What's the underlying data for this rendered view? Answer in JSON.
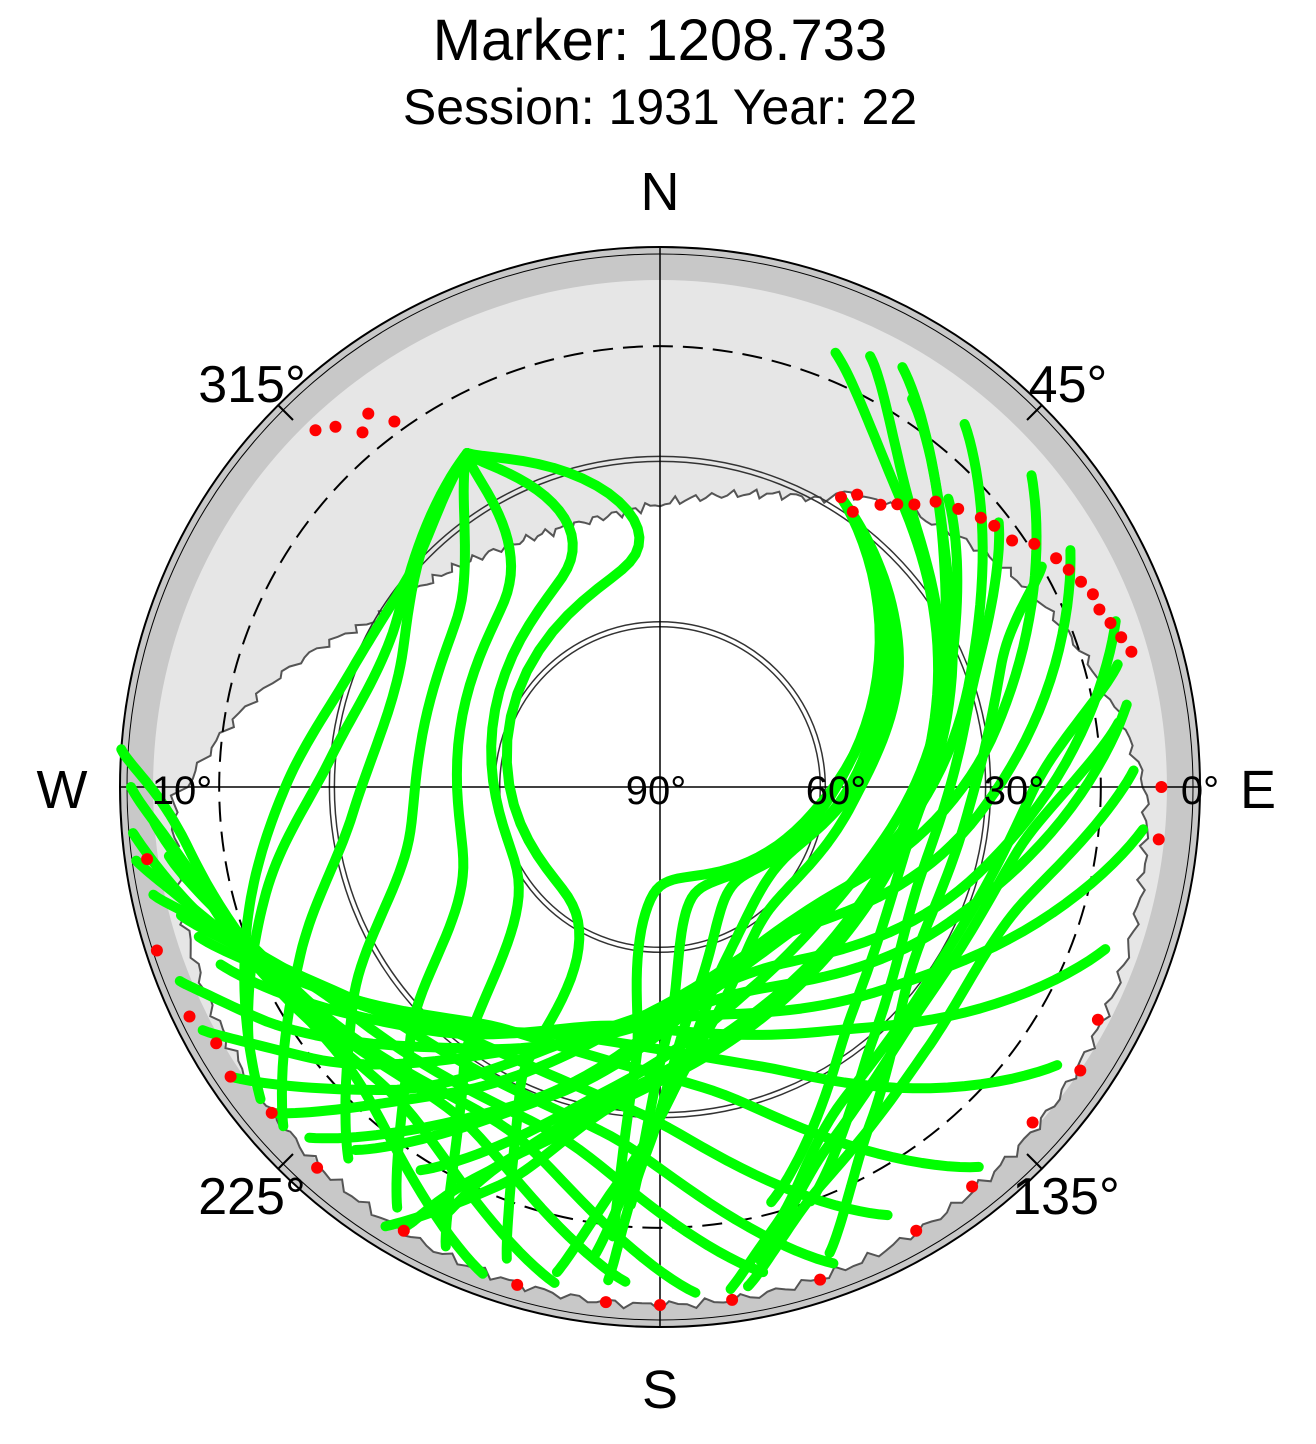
{
  "chart_data": {
    "type": "scatter",
    "projection": "polar-skyplot",
    "title": "Marker: 1208.733",
    "subtitle": "Session: 1931 Year: 22",
    "directions": {
      "north": "N",
      "south": "S",
      "west": "W",
      "east": "E"
    },
    "azimuth_labels": [
      {
        "text": "45°",
        "az": 45
      },
      {
        "text": "135°",
        "az": 135
      },
      {
        "text": "225°",
        "az": 225
      },
      {
        "text": "315°",
        "az": 315
      }
    ],
    "elevation_labels": [
      {
        "text": "90°",
        "el": 90
      },
      {
        "text": "60°",
        "el": 60
      },
      {
        "text": "30°",
        "el": 30
      },
      {
        "text": "0°",
        "el": 0
      },
      {
        "text": "10°",
        "el": 10
      }
    ],
    "elevation_range": [
      -8,
      90
    ],
    "elevation_cutoff_deg": 10,
    "elevation_circles_deg": [
      30,
      60
    ],
    "colors": {
      "valid": "#00ff00",
      "flagged": "#ff0000",
      "outer_ring": "#c8c8c8",
      "horizon_mask": "#e6e6e6"
    },
    "series": [
      {
        "name": "",
        "color": "#00ff00",
        "marker": "circle",
        "note_tracks_az_el": [
          [
            [
              22,
              5
            ],
            [
              40,
              22
            ],
            [
              80,
              40
            ],
            [
              120,
              48
            ],
            [
              160,
              45
            ],
            [
              190,
              32
            ],
            [
              205,
              12
            ],
            [
              210,
              -2
            ]
          ],
          [
            [
              26,
              3
            ],
            [
              45,
              24
            ],
            [
              90,
              42
            ],
            [
              135,
              48
            ],
            [
              175,
              40
            ],
            [
              200,
              20
            ],
            [
              207,
              2
            ]
          ],
          [
            [
              30,
              2
            ],
            [
              55,
              26
            ],
            [
              100,
              44
            ],
            [
              145,
              46
            ],
            [
              185,
              34
            ],
            [
              202,
              12
            ],
            [
              212,
              -4
            ]
          ],
          [
            [
              33,
              6
            ],
            [
              60,
              30
            ],
            [
              110,
              50
            ],
            [
              155,
              50
            ],
            [
              190,
              34
            ],
            [
              212,
              8
            ]
          ],
          [
            [
              40,
              4
            ],
            [
              70,
              30
            ],
            [
              120,
              52
            ],
            [
              165,
              52
            ],
            [
              200,
              30
            ],
            [
              220,
              4
            ]
          ],
          [
            [
              50,
              2
            ],
            [
              80,
              28
            ],
            [
              125,
              54
            ],
            [
              170,
              52
            ],
            [
              205,
              26
            ],
            [
              225,
              0
            ]
          ],
          [
            [
              60,
              4
            ],
            [
              95,
              32
            ],
            [
              140,
              55
            ],
            [
              185,
              48
            ],
            [
              215,
              22
            ],
            [
              230,
              -2
            ]
          ],
          [
            [
              70,
              2
            ],
            [
              105,
              30
            ],
            [
              150,
              52
            ],
            [
              195,
              44
            ],
            [
              222,
              16
            ],
            [
              236,
              -4
            ]
          ],
          [
            [
              80,
              4
            ],
            [
              115,
              32
            ],
            [
              160,
              50
            ],
            [
              205,
              38
            ],
            [
              232,
              10
            ],
            [
              242,
              -4
            ]
          ],
          [
            [
              95,
              2
            ],
            [
              130,
              34
            ],
            [
              175,
              48
            ],
            [
              215,
              32
            ],
            [
              240,
              6
            ],
            [
              248,
              -4
            ]
          ],
          [
            [
              110,
              4
            ],
            [
              145,
              36
            ],
            [
              190,
              46
            ],
            [
              225,
              28
            ],
            [
              248,
              4
            ]
          ],
          [
            [
              125,
              2
            ],
            [
              160,
              36
            ],
            [
              200,
              42
            ],
            [
              235,
              22
            ],
            [
              252,
              2
            ]
          ],
          [
            [
              140,
              0
            ],
            [
              170,
              34
            ],
            [
              212,
              38
            ],
            [
              242,
              16
            ],
            [
              255,
              0
            ]
          ],
          [
            [
              152,
              2
            ],
            [
              182,
              30
            ],
            [
              220,
              32
            ],
            [
              248,
              10
            ],
            [
              258,
              -4
            ]
          ],
          [
            [
              160,
              -2
            ],
            [
              188,
              26
            ],
            [
              228,
              26
            ],
            [
              252,
              6
            ],
            [
              262,
              -6
            ]
          ],
          [
            [
              168,
              0
            ],
            [
              196,
              24
            ],
            [
              235,
              20
            ],
            [
              256,
              2
            ],
            [
              265,
              -6
            ]
          ],
          [
            [
              176,
              -2
            ],
            [
              204,
              22
            ],
            [
              242,
              14
            ],
            [
              262,
              0
            ]
          ],
          [
            [
              184,
              0
            ],
            [
              212,
              20
            ],
            [
              248,
              10
            ],
            [
              266,
              -2
            ]
          ],
          [
            [
              192,
              -2
            ],
            [
              220,
              16
            ],
            [
              255,
              6
            ],
            [
              270,
              -6
            ]
          ],
          [
            [
              200,
              -4
            ],
            [
              228,
              14
            ],
            [
              262,
              4
            ],
            [
              274,
              -8
            ]
          ],
          [
            [
              330,
              20
            ],
            [
              312,
              30
            ],
            [
              290,
              30
            ],
            [
              270,
              22
            ],
            [
              250,
              10
            ],
            [
              232,
              -2
            ]
          ],
          [
            [
              330,
              20
            ],
            [
              300,
              34
            ],
            [
              275,
              30
            ],
            [
              255,
              16
            ],
            [
              238,
              2
            ]
          ],
          [
            [
              330,
              20
            ],
            [
              295,
              38
            ],
            [
              265,
              34
            ],
            [
              245,
              18
            ],
            [
              228,
              -2
            ]
          ],
          [
            [
              330,
              20
            ],
            [
              310,
              42
            ],
            [
              260,
              44
            ],
            [
              235,
              22
            ],
            [
              220,
              2
            ]
          ],
          [
            [
              330,
              20
            ],
            [
              320,
              46
            ],
            [
              250,
              52
            ],
            [
              225,
              26
            ],
            [
              212,
              0
            ]
          ],
          [
            [
              330,
              20
            ],
            [
              335,
              48
            ],
            [
              240,
              60
            ],
            [
              215,
              28
            ],
            [
              205,
              -2
            ]
          ],
          [
            [
              330,
              20
            ],
            [
              350,
              50
            ],
            [
              220,
              64
            ],
            [
              205,
              30
            ],
            [
              198,
              0
            ]
          ],
          [
            [
              32,
              28
            ],
            [
              60,
              40
            ],
            [
              95,
              55
            ],
            [
              140,
              60
            ],
            [
              170,
              44
            ],
            [
              185,
              20
            ],
            [
              192,
              0
            ]
          ],
          [
            [
              32,
              28
            ],
            [
              70,
              46
            ],
            [
              120,
              64
            ],
            [
              160,
              56
            ],
            [
              180,
              30
            ],
            [
              188,
              4
            ]
          ],
          [
            [
              32,
              28
            ],
            [
              80,
              52
            ],
            [
              140,
              68
            ],
            [
              170,
              52
            ],
            [
              182,
              24
            ],
            [
              186,
              0
            ]
          ],
          [
            [
              32,
              28
            ],
            [
              90,
              58
            ],
            [
              160,
              70
            ],
            [
              178,
              46
            ],
            [
              184,
              14
            ]
          ],
          [
            [
              32,
              28
            ],
            [
              100,
              62
            ],
            [
              180,
              72
            ],
            [
              185,
              40
            ],
            [
              186,
              8
            ]
          ],
          [
            [
              75,
              4
            ],
            [
              90,
              22
            ],
            [
              120,
              30
            ],
            [
              150,
              24
            ],
            [
              165,
              8
            ],
            [
              172,
              -2
            ]
          ],
          [
            [
              82,
              6
            ],
            [
              100,
              24
            ],
            [
              130,
              28
            ],
            [
              155,
              18
            ],
            [
              168,
              2
            ]
          ],
          [
            [
              88,
              4
            ],
            [
              110,
              22
            ],
            [
              135,
              22
            ],
            [
              158,
              12
            ],
            [
              170,
              -2
            ]
          ],
          [
            [
              60,
              10
            ],
            [
              70,
              24
            ],
            [
              95,
              34
            ],
            [
              125,
              34
            ],
            [
              148,
              18
            ],
            [
              160,
              0
            ]
          ],
          [
            [
              52,
              12
            ],
            [
              75,
              32
            ],
            [
              110,
              40
            ],
            [
              140,
              30
            ],
            [
              160,
              10
            ]
          ],
          [
            [
              45,
              16
            ],
            [
              70,
              34
            ],
            [
              105,
              44
            ],
            [
              140,
              36
            ],
            [
              165,
              12
            ]
          ]
        ]
      },
      {
        "name": "",
        "color": "#ff0000",
        "marker": "circle",
        "note_points_az_el": [
          [
            32,
            28
          ],
          [
            34,
            26
          ],
          [
            35,
            29
          ],
          [
            38,
            25
          ],
          [
            40,
            23
          ],
          [
            42,
            21
          ],
          [
            44,
            18
          ],
          [
            47,
            16
          ],
          [
            50,
            14
          ],
          [
            52,
            13
          ],
          [
            55,
            12
          ],
          [
            57,
            9
          ],
          [
            60,
            7
          ],
          [
            62,
            6
          ],
          [
            64,
            5
          ],
          [
            66,
            4
          ],
          [
            68,
            4
          ],
          [
            70,
            3
          ],
          [
            72,
            2
          ],
          [
            74,
            1
          ],
          [
            90,
            -1
          ],
          [
            96,
            -1
          ],
          [
            118,
            0
          ],
          [
            124,
            -2
          ],
          [
            132,
            -1
          ],
          [
            142,
            -2
          ],
          [
            150,
            -3
          ],
          [
            162,
            -4
          ],
          [
            172,
            -4
          ],
          [
            180,
            -4
          ],
          [
            186,
            -4
          ],
          [
            196,
            -4
          ],
          [
            210,
            -3
          ],
          [
            222,
            -3
          ],
          [
            230,
            -2
          ],
          [
            236,
            -4
          ],
          [
            240,
            -3
          ],
          [
            244,
            -5
          ],
          [
            252,
            -6
          ],
          [
            262,
            -4
          ],
          [
            316,
            0
          ],
          [
            318,
            2
          ],
          [
            320,
            6
          ],
          [
            322,
            4
          ],
          [
            324,
            8
          ]
        ]
      }
    ],
    "grid": true,
    "legend": "none"
  }
}
